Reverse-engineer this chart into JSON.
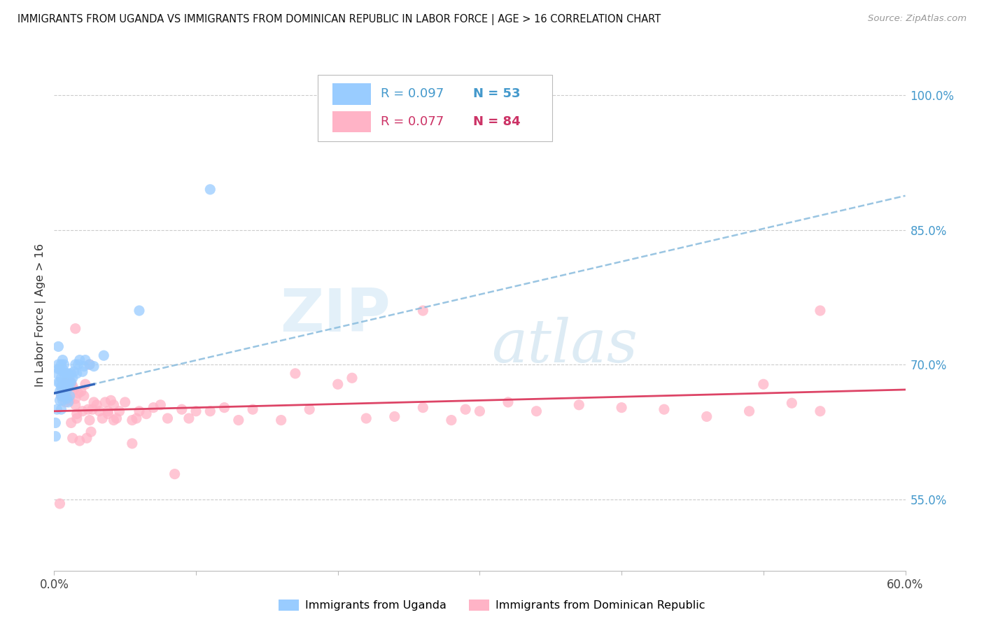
{
  "title": "IMMIGRANTS FROM UGANDA VS IMMIGRANTS FROM DOMINICAN REPUBLIC IN LABOR FORCE | AGE > 16 CORRELATION CHART",
  "source": "Source: ZipAtlas.com",
  "ylabel": "In Labor Force | Age > 16",
  "yaxis_labels": [
    "55.0%",
    "70.0%",
    "85.0%",
    "100.0%"
  ],
  "yaxis_values": [
    0.55,
    0.7,
    0.85,
    1.0
  ],
  "xlim": [
    0.0,
    0.6
  ],
  "ylim": [
    0.47,
    1.04
  ],
  "color_uganda": "#99CCFF",
  "color_dr": "#FFB3C6",
  "line_color_uganda_solid": "#3366BB",
  "line_color_uganda_dashed": "#88BBDD",
  "line_color_dr": "#DD4466",
  "R_uganda": 0.097,
  "N_uganda": 53,
  "R_dr": 0.077,
  "N_dr": 84,
  "uganda_x": [
    0.001,
    0.001,
    0.002,
    0.002,
    0.003,
    0.003,
    0.003,
    0.003,
    0.004,
    0.004,
    0.004,
    0.004,
    0.005,
    0.005,
    0.005,
    0.005,
    0.005,
    0.006,
    0.006,
    0.006,
    0.006,
    0.006,
    0.007,
    0.007,
    0.007,
    0.007,
    0.008,
    0.008,
    0.008,
    0.009,
    0.009,
    0.009,
    0.01,
    0.01,
    0.01,
    0.011,
    0.011,
    0.012,
    0.012,
    0.013,
    0.014,
    0.015,
    0.016,
    0.017,
    0.018,
    0.02,
    0.021,
    0.022,
    0.025,
    0.028,
    0.035,
    0.06,
    0.11
  ],
  "uganda_y": [
    0.635,
    0.62,
    0.69,
    0.65,
    0.72,
    0.7,
    0.68,
    0.695,
    0.66,
    0.67,
    0.68,
    0.695,
    0.65,
    0.665,
    0.675,
    0.685,
    0.7,
    0.66,
    0.672,
    0.68,
    0.695,
    0.705,
    0.665,
    0.678,
    0.69,
    0.7,
    0.668,
    0.678,
    0.69,
    0.662,
    0.678,
    0.69,
    0.658,
    0.675,
    0.69,
    0.665,
    0.68,
    0.68,
    0.69,
    0.685,
    0.692,
    0.7,
    0.69,
    0.7,
    0.705,
    0.692,
    0.698,
    0.705,
    0.7,
    0.698,
    0.71,
    0.76,
    0.895
  ],
  "dr_x": [
    0.004,
    0.006,
    0.007,
    0.008,
    0.008,
    0.009,
    0.01,
    0.01,
    0.011,
    0.012,
    0.012,
    0.013,
    0.013,
    0.014,
    0.015,
    0.015,
    0.016,
    0.017,
    0.018,
    0.019,
    0.02,
    0.021,
    0.022,
    0.023,
    0.024,
    0.025,
    0.026,
    0.028,
    0.03,
    0.032,
    0.034,
    0.036,
    0.038,
    0.04,
    0.042,
    0.044,
    0.046,
    0.05,
    0.055,
    0.06,
    0.065,
    0.07,
    0.08,
    0.09,
    0.1,
    0.11,
    0.12,
    0.13,
    0.14,
    0.16,
    0.18,
    0.2,
    0.22,
    0.24,
    0.26,
    0.28,
    0.3,
    0.32,
    0.34,
    0.37,
    0.4,
    0.43,
    0.46,
    0.49,
    0.52,
    0.54,
    0.015,
    0.17,
    0.21,
    0.055,
    0.085,
    0.26,
    0.29,
    0.005,
    0.54,
    0.025,
    0.038,
    0.016,
    0.027,
    0.042,
    0.058,
    0.075,
    0.095,
    0.5
  ],
  "dr_y": [
    0.545,
    0.665,
    0.672,
    0.658,
    0.68,
    0.668,
    0.662,
    0.678,
    0.66,
    0.635,
    0.68,
    0.618,
    0.676,
    0.672,
    0.662,
    0.655,
    0.64,
    0.668,
    0.615,
    0.67,
    0.648,
    0.665,
    0.678,
    0.618,
    0.65,
    0.638,
    0.625,
    0.658,
    0.655,
    0.648,
    0.64,
    0.658,
    0.648,
    0.66,
    0.638,
    0.64,
    0.648,
    0.658,
    0.638,
    0.648,
    0.645,
    0.652,
    0.64,
    0.65,
    0.648,
    0.648,
    0.652,
    0.638,
    0.65,
    0.638,
    0.65,
    0.678,
    0.64,
    0.642,
    0.652,
    0.638,
    0.648,
    0.658,
    0.648,
    0.655,
    0.652,
    0.65,
    0.642,
    0.648,
    0.657,
    0.648,
    0.74,
    0.69,
    0.685,
    0.612,
    0.578,
    0.76,
    0.65,
    0.665,
    0.76,
    0.7,
    0.645,
    0.645,
    0.65,
    0.655,
    0.64,
    0.655,
    0.64,
    0.678
  ],
  "trendline_uganda_x0": 0.0,
  "trendline_uganda_y0": 0.668,
  "trendline_uganda_x1": 0.6,
  "trendline_uganda_y1": 0.888,
  "trendline_uganda_solid_x0": 0.0,
  "trendline_uganda_solid_y0": 0.668,
  "trendline_uganda_solid_x1": 0.028,
  "trendline_uganda_solid_y1": 0.678,
  "trendline_dr_x0": 0.0,
  "trendline_dr_y0": 0.648,
  "trendline_dr_x1": 0.6,
  "trendline_dr_y1": 0.672
}
